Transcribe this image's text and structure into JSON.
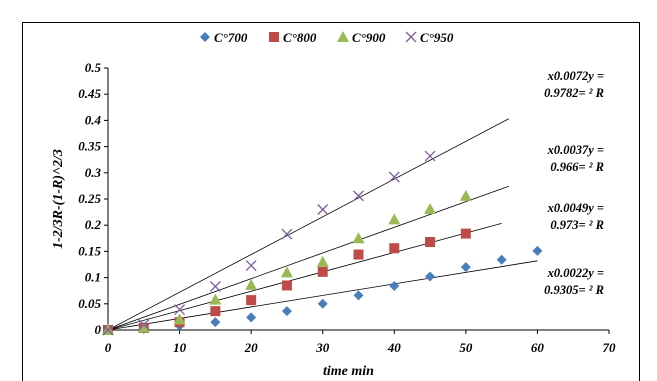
{
  "chart_data": {
    "type": "scatter",
    "xlabel": "time min",
    "ylabel": "1-2/3R-(1-R)^2/3",
    "xlim": [
      0,
      70
    ],
    "ylim": [
      0,
      0.5
    ],
    "x_ticks": [
      "0",
      "10",
      "20",
      "30",
      "40",
      "50",
      "60",
      "70"
    ],
    "y_ticks": [
      "0",
      "0.05",
      "0.1",
      "0.15",
      "0.2",
      "0.25",
      "0.3",
      "0.35",
      "0.4",
      "0.45",
      "0.5"
    ],
    "grid": false,
    "legend_position": "top",
    "series": [
      {
        "name": "C°700",
        "marker": "diamond",
        "color": "#4a7ebb",
        "x": [
          0,
          5,
          10,
          15,
          20,
          25,
          30,
          35,
          40,
          45,
          50,
          55,
          60
        ],
        "y": [
          0,
          0.002,
          0.008,
          0.015,
          0.024,
          0.036,
          0.05,
          0.066,
          0.084,
          0.102,
          0.12,
          0.134,
          0.151
        ],
        "trendline_slope": 0.0022,
        "trendline_xmax": 60,
        "equation": [
          "x0.0022y =",
          "0.9305= ² R"
        ]
      },
      {
        "name": "C°800",
        "marker": "square",
        "color": "#be4b48",
        "x": [
          0,
          5,
          10,
          15,
          20,
          25,
          30,
          35,
          40,
          45,
          50
        ],
        "y": [
          0,
          0.004,
          0.015,
          0.036,
          0.057,
          0.085,
          0.111,
          0.144,
          0.156,
          0.168,
          0.184
        ],
        "trendline_slope": 0.0037,
        "trendline_xmax": 55,
        "equation": [
          "x0.0037y =",
          "0.966= ² R"
        ]
      },
      {
        "name": "C°900",
        "marker": "triangle",
        "color": "#98b954",
        "x": [
          0,
          5,
          10,
          15,
          20,
          25,
          30,
          35,
          40,
          45,
          50
        ],
        "y": [
          0,
          0.005,
          0.02,
          0.058,
          0.086,
          0.11,
          0.13,
          0.175,
          0.211,
          0.231,
          0.256
        ],
        "trendline_slope": 0.0049,
        "trendline_xmax": 56,
        "equation": [
          "x0.0049y =",
          "0.973= ² R"
        ]
      },
      {
        "name": "C°950",
        "marker": "x",
        "color": "#7d60a0",
        "x": [
          0,
          5,
          10,
          15,
          20,
          25,
          30,
          35,
          40,
          45
        ],
        "y": [
          0,
          0.01,
          0.039,
          0.083,
          0.123,
          0.183,
          0.23,
          0.256,
          0.292,
          0.332
        ],
        "trendline_slope": 0.0072,
        "trendline_xmax": 56,
        "equation": [
          "x0.0072y =",
          "0.9782= ² R"
        ]
      }
    ]
  }
}
